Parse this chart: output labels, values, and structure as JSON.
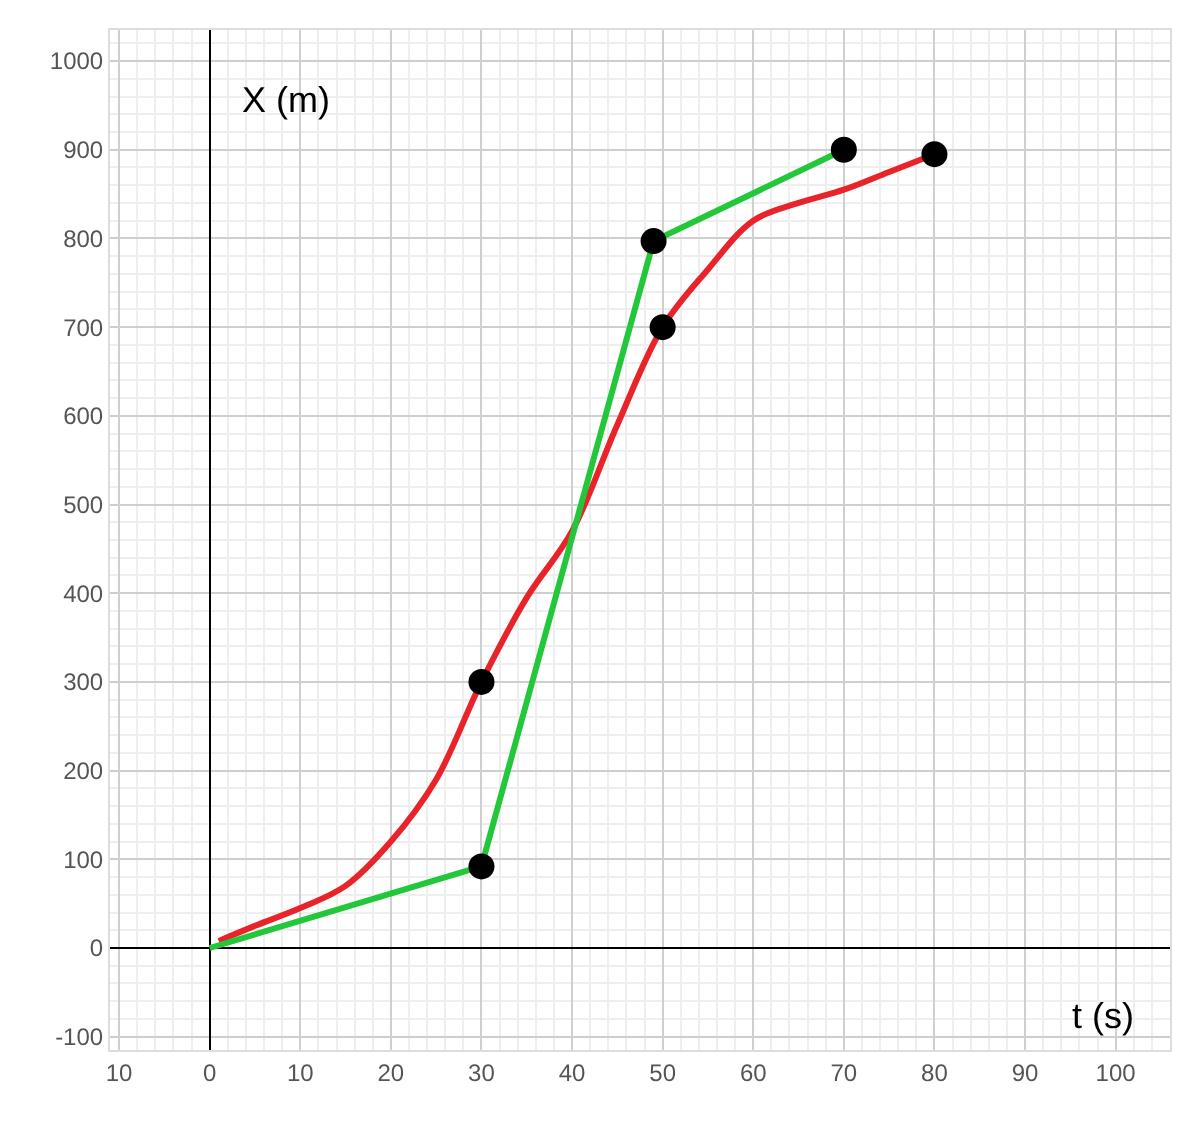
{
  "chart_data": {
    "type": "line",
    "xlabel": "t (s)",
    "ylabel": "X (m)",
    "series": [
      {
        "color": "#e8242a",
        "marker": "none",
        "x": [
          1,
          5,
          10,
          15,
          20,
          25,
          30,
          35,
          40,
          45,
          50,
          55,
          60,
          65,
          70,
          75,
          80
        ],
        "values": [
          8,
          25,
          45,
          70,
          120,
          190,
          300,
          395,
          470,
          590,
          700,
          765,
          820,
          840,
          855,
          875,
          895
        ]
      },
      {
        "color": "#22c73a",
        "marker": "none",
        "x": [
          0,
          30,
          49,
          70
        ],
        "values": [
          0,
          92,
          797,
          900
        ]
      },
      {
        "type": "scatter",
        "color": "#000000",
        "marker": "circle",
        "x": [
          30,
          30,
          49,
          50,
          70,
          80
        ],
        "values": [
          92,
          300,
          797,
          700,
          900,
          895
        ]
      }
    ],
    "xlim": [
      -11,
      106
    ],
    "ylim": [
      -115,
      1035
    ],
    "xticks": [
      {
        "value": -10,
        "label": "10"
      },
      0,
      10,
      20,
      30,
      40,
      50,
      60,
      70,
      80,
      90,
      100
    ],
    "yticks": [
      -100,
      0,
      100,
      200,
      300,
      400,
      500,
      600,
      700,
      800,
      900,
      1000
    ],
    "grid": true,
    "line_style": "solid"
  }
}
